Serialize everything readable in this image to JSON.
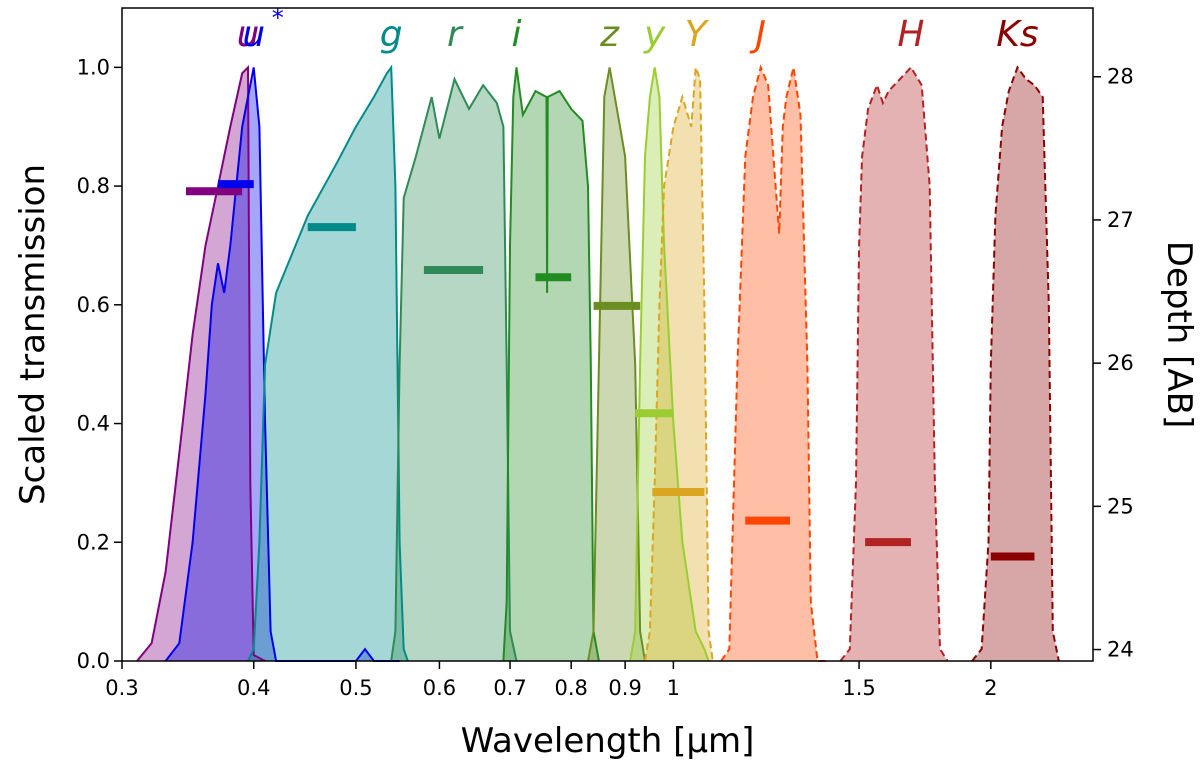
{
  "chart_data": {
    "type": "area",
    "title": "",
    "xlabel": "Wavelength [μm]",
    "ylabel": "Scaled transmission",
    "y2label": "Depth [AB]",
    "xscale": "log",
    "xlim": [
      0.3,
      2.5
    ],
    "ylim": [
      0.0,
      1.1
    ],
    "y2lim": [
      23.92,
      28.48
    ],
    "grid": false,
    "x_ticks": [
      {
        "value": 0.3,
        "label": "0.3"
      },
      {
        "value": 0.4,
        "label": "0.4"
      },
      {
        "value": 0.5,
        "label": "0.5"
      },
      {
        "value": 0.6,
        "label": "0.6"
      },
      {
        "value": 0.7,
        "label": "0.7"
      },
      {
        "value": 0.8,
        "label": "0.8"
      },
      {
        "value": 0.9,
        "label": "0.9"
      },
      {
        "value": 1.0,
        "label": "1"
      },
      {
        "value": 1.5,
        "label": "1.5"
      },
      {
        "value": 2.0,
        "label": "2"
      }
    ],
    "y_ticks": [
      {
        "value": 0.0,
        "label": "0.0"
      },
      {
        "value": 0.2,
        "label": "0.2"
      },
      {
        "value": 0.4,
        "label": "0.4"
      },
      {
        "value": 0.6,
        "label": "0.6"
      },
      {
        "value": 0.8,
        "label": "0.8"
      },
      {
        "value": 1.0,
        "label": "1.0"
      }
    ],
    "y2_ticks": [
      {
        "value": 24,
        "label": "24"
      },
      {
        "value": 25,
        "label": "25"
      },
      {
        "value": 26,
        "label": "26"
      },
      {
        "value": 27,
        "label": "27"
      },
      {
        "value": 28,
        "label": "28"
      }
    ],
    "series": [
      {
        "name": "u",
        "label": "u",
        "color": "#800080",
        "dashed": false,
        "depth": 27.2,
        "depth_range": [
          0.345,
          0.39
        ],
        "x": [
          0.31,
          0.32,
          0.33,
          0.34,
          0.35,
          0.36,
          0.37,
          0.38,
          0.39,
          0.395,
          0.397,
          0.4,
          0.41
        ],
        "y": [
          0.0,
          0.03,
          0.15,
          0.35,
          0.55,
          0.7,
          0.8,
          0.9,
          0.99,
          1.0,
          0.3,
          0.01,
          0.0
        ]
      },
      {
        "name": "u*",
        "label": "u",
        "label_suffix": "*",
        "color": "#0000ee",
        "dashed": false,
        "depth": 27.25,
        "depth_range": [
          0.37,
          0.4
        ],
        "x": [
          0.33,
          0.34,
          0.35,
          0.36,
          0.365,
          0.37,
          0.375,
          0.38,
          0.39,
          0.4,
          0.405,
          0.41,
          0.415,
          0.42,
          0.5,
          0.51,
          0.52,
          0.55
        ],
        "y": [
          0.0,
          0.03,
          0.2,
          0.45,
          0.6,
          0.67,
          0.62,
          0.7,
          0.9,
          1.0,
          0.9,
          0.4,
          0.05,
          0.0,
          0.0,
          0.02,
          0.0,
          0.0
        ]
      },
      {
        "name": "g",
        "label": "g",
        "color": "#008b8b",
        "dashed": false,
        "depth": 26.95,
        "depth_range": [
          0.45,
          0.5
        ],
        "x": [
          0.395,
          0.4,
          0.405,
          0.41,
          0.42,
          0.45,
          0.48,
          0.5,
          0.52,
          0.535,
          0.54,
          0.545,
          0.55,
          0.555,
          0.56
        ],
        "y": [
          0.0,
          0.02,
          0.2,
          0.5,
          0.62,
          0.75,
          0.84,
          0.9,
          0.95,
          0.99,
          1.0,
          0.8,
          0.2,
          0.02,
          0.0
        ]
      },
      {
        "name": "r",
        "label": "r",
        "color": "#2e8b57",
        "dashed": false,
        "depth": 26.65,
        "depth_range": [
          0.58,
          0.66
        ],
        "x": [
          0.54,
          0.545,
          0.55,
          0.555,
          0.57,
          0.59,
          0.6,
          0.62,
          0.64,
          0.66,
          0.68,
          0.69,
          0.695,
          0.7,
          0.71
        ],
        "y": [
          0.0,
          0.05,
          0.5,
          0.78,
          0.85,
          0.95,
          0.88,
          0.98,
          0.93,
          0.97,
          0.94,
          0.9,
          0.5,
          0.05,
          0.0
        ]
      },
      {
        "name": "i",
        "label": "i",
        "color": "#228b22",
        "dashed": false,
        "depth": 26.6,
        "depth_range": [
          0.74,
          0.8
        ],
        "x": [
          0.69,
          0.695,
          0.7,
          0.705,
          0.71,
          0.72,
          0.74,
          0.758,
          0.759,
          0.76,
          0.78,
          0.8,
          0.82,
          0.83,
          0.835,
          0.84,
          0.85
        ],
        "y": [
          0.0,
          0.1,
          0.7,
          0.95,
          1.0,
          0.92,
          0.96,
          0.95,
          0.62,
          0.95,
          0.96,
          0.93,
          0.91,
          0.8,
          0.5,
          0.05,
          0.0
        ]
      },
      {
        "name": "z",
        "label": "z",
        "color": "#6b8e23",
        "dashed": false,
        "depth": 26.4,
        "depth_range": [
          0.84,
          0.93
        ],
        "x": [
          0.83,
          0.84,
          0.85,
          0.86,
          0.87,
          0.88,
          0.89,
          0.9,
          0.92,
          0.93,
          0.94
        ],
        "y": [
          0.0,
          0.05,
          0.5,
          0.95,
          1.0,
          0.95,
          0.9,
          0.85,
          0.5,
          0.05,
          0.0
        ]
      },
      {
        "name": "y",
        "label": "y",
        "color": "#9acd32",
        "dashed": false,
        "depth": 25.65,
        "depth_range": [
          0.92,
          1.0
        ],
        "x": [
          0.91,
          0.92,
          0.93,
          0.94,
          0.95,
          0.96,
          0.97,
          0.98,
          1.0,
          1.02,
          1.05,
          1.07,
          1.08
        ],
        "y": [
          0.0,
          0.05,
          0.5,
          0.85,
          0.95,
          1.0,
          0.95,
          0.7,
          0.4,
          0.2,
          0.05,
          0.02,
          0.0
        ]
      },
      {
        "name": "Y",
        "label": "Y",
        "color": "#daa520",
        "dashed": true,
        "depth": 25.1,
        "depth_range": [
          0.955,
          1.07
        ],
        "x": [
          0.94,
          0.95,
          0.96,
          0.97,
          0.98,
          1.0,
          1.02,
          1.04,
          1.05,
          1.06,
          1.07,
          1.08,
          1.09
        ],
        "y": [
          0.0,
          0.05,
          0.3,
          0.6,
          0.8,
          0.9,
          0.95,
          0.9,
          1.0,
          0.98,
          0.6,
          0.05,
          0.0
        ]
      },
      {
        "name": "J",
        "label": "J",
        "color": "#ff4500",
        "dashed": true,
        "depth": 24.9,
        "depth_range": [
          1.17,
          1.29
        ],
        "x": [
          1.11,
          1.13,
          1.15,
          1.17,
          1.19,
          1.21,
          1.23,
          1.25,
          1.26,
          1.27,
          1.28,
          1.3,
          1.32,
          1.34,
          1.35,
          1.37,
          1.4
        ],
        "y": [
          0.0,
          0.02,
          0.5,
          0.85,
          0.95,
          1.0,
          0.97,
          0.8,
          0.72,
          0.9,
          0.95,
          1.0,
          0.92,
          0.5,
          0.1,
          0.0,
          0.0
        ]
      },
      {
        "name": "H",
        "label": "H",
        "color": "#b22222",
        "dashed": true,
        "depth": 24.75,
        "depth_range": [
          1.52,
          1.68
        ],
        "x": [
          1.44,
          1.47,
          1.49,
          1.5,
          1.51,
          1.53,
          1.56,
          1.58,
          1.6,
          1.64,
          1.68,
          1.72,
          1.75,
          1.77,
          1.79,
          1.82
        ],
        "y": [
          0.0,
          0.02,
          0.3,
          0.7,
          0.85,
          0.93,
          0.97,
          0.94,
          0.96,
          0.98,
          1.0,
          0.97,
          0.8,
          0.3,
          0.02,
          0.0
        ]
      },
      {
        "name": "Ks",
        "label": "Ks",
        "color": "#8b0000",
        "dashed": true,
        "depth": 24.65,
        "depth_range": [
          2.0,
          2.2
        ],
        "x": [
          1.92,
          1.96,
          1.99,
          2.0,
          2.02,
          2.05,
          2.08,
          2.12,
          2.16,
          2.2,
          2.24,
          2.27,
          2.29,
          2.32
        ],
        "y": [
          0.0,
          0.02,
          0.2,
          0.5,
          0.75,
          0.9,
          0.96,
          1.0,
          0.98,
          0.97,
          0.95,
          0.6,
          0.05,
          0.0
        ]
      }
    ]
  }
}
